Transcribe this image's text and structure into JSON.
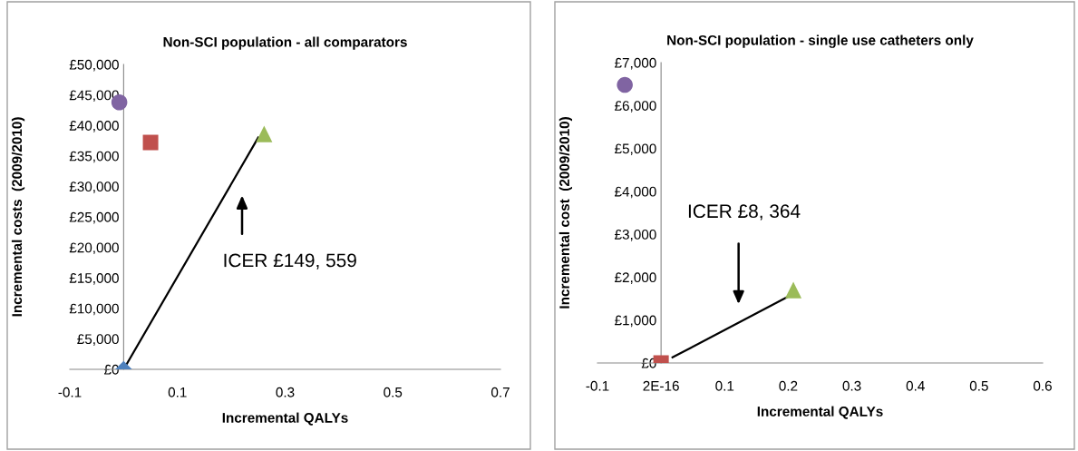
{
  "chart_data": [
    {
      "type": "scatter",
      "title": "Non-SCI population - all comparators",
      "xlabel": "Incremental QALYs",
      "ylabel": "Incremental costs  (2009/2010)",
      "xlim": [
        -0.1,
        0.7
      ],
      "xticks": [
        -0.1,
        0.1,
        0.3,
        0.5,
        0.7
      ],
      "ylim": [
        0,
        50000
      ],
      "yticks": [
        {
          "value": 0,
          "label": "£0"
        },
        {
          "value": 5000,
          "label": "£5,000"
        },
        {
          "value": 10000,
          "label": "£10,000"
        },
        {
          "value": 15000,
          "label": "£15,000"
        },
        {
          "value": 20000,
          "label": "£20,000"
        },
        {
          "value": 25000,
          "label": "£25,000"
        },
        {
          "value": 30000,
          "label": "£30,000"
        },
        {
          "value": 35000,
          "label": "£35,000"
        },
        {
          "value": 40000,
          "label": "£40,000"
        },
        {
          "value": 45000,
          "label": "£45,000"
        },
        {
          "value": 50000,
          "label": "£50,000"
        }
      ],
      "grid": false,
      "legend": false,
      "series": [
        {
          "type": "line",
          "color": "#000000",
          "x": [
            0,
            0.25
          ],
          "values": [
            0,
            38000
          ],
          "marker": "none"
        },
        {
          "color": "#4f81bd",
          "x": [
            0
          ],
          "values": [
            0
          ],
          "marker": "diamond"
        },
        {
          "color": "#8064a2",
          "x": [
            -0.008
          ],
          "values": [
            43800
          ],
          "marker": "circle"
        },
        {
          "color": "#c0504d",
          "x": [
            0.05
          ],
          "values": [
            37200
          ],
          "marker": "square"
        },
        {
          "color": "#9bbb59",
          "x": [
            0.261
          ],
          "values": [
            38600
          ],
          "marker": "triangle"
        }
      ],
      "annotations": [
        "ICER £149, 559"
      ]
    },
    {
      "type": "scatter",
      "title": "Non-SCI population - single use catheters only",
      "xlabel": "Incremental QALYs",
      "ylabel": "Incremental cost  (2009/2010)",
      "xlim": [
        -0.1,
        0.6
      ],
      "xticks": [
        -0.1,
        {
          "value": 0,
          "label": "2E-16"
        },
        0.1,
        0.2,
        0.3,
        0.4,
        0.5,
        0.6
      ],
      "ylim": [
        0,
        7000
      ],
      "yticks": [
        {
          "value": 0,
          "label": "£0"
        },
        {
          "value": 1000,
          "label": "£1,000"
        },
        {
          "value": 2000,
          "label": "£2,000"
        },
        {
          "value": 3000,
          "label": "£3,000"
        },
        {
          "value": 4000,
          "label": "£4,000"
        },
        {
          "value": 5000,
          "label": "£5,000"
        },
        {
          "value": 6000,
          "label": "£6,000"
        },
        {
          "value": 7000,
          "label": "£7,000"
        }
      ],
      "grid": false,
      "legend": false,
      "series": [
        {
          "type": "line",
          "color": "#000000",
          "x": [
            0.018,
            0.2
          ],
          "values": [
            130,
            1550
          ],
          "marker": "none"
        },
        {
          "color": "#8064a2",
          "x": [
            -0.057
          ],
          "values": [
            6480
          ],
          "marker": "circle"
        },
        {
          "color": "#c0504d",
          "x": [
            0
          ],
          "values": [
            0
          ],
          "marker": "square"
        },
        {
          "color": "#9bbb59",
          "x": [
            0.208
          ],
          "values": [
            1700
          ],
          "marker": "triangle"
        }
      ],
      "annotations": [
        "ICER £8, 364"
      ]
    }
  ]
}
